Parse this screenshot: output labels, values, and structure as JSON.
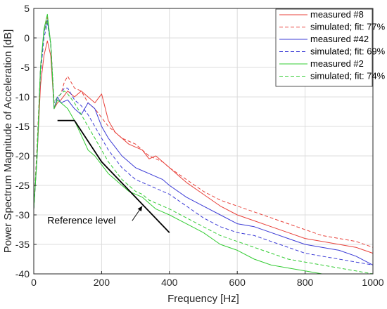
{
  "chart_data": {
    "type": "line",
    "title": "",
    "xlabel": "Frequency [Hz]",
    "ylabel": "Power Spectrum Magnitude of Acceleration [dB]",
    "xlim": [
      0,
      1000
    ],
    "ylim": [
      -40,
      5
    ],
    "xticks": [
      0,
      200,
      400,
      600,
      800,
      1000
    ],
    "yticks": [
      5,
      0,
      -5,
      -10,
      -15,
      -20,
      -25,
      -30,
      -35,
      -40
    ],
    "grid": true,
    "legend_position": "top-right",
    "series": [
      {
        "name": "measured #8",
        "color": "#e8413a",
        "dash": "solid",
        "x": [
          0,
          10,
          20,
          30,
          40,
          50,
          60,
          70,
          80,
          100,
          120,
          140,
          160,
          180,
          200,
          220,
          240,
          260,
          280,
          300,
          320,
          340,
          360,
          380,
          400,
          450,
          500,
          550,
          600,
          650,
          700,
          750,
          800,
          850,
          900,
          950,
          1000
        ],
        "y": [
          -29,
          -20,
          -8,
          -3,
          -0.5,
          -3,
          -12,
          -11,
          -10.5,
          -9,
          -10,
          -9,
          -10,
          -11,
          -9.5,
          -14,
          -16,
          -17,
          -18,
          -18.5,
          -19,
          -20.5,
          -20,
          -21,
          -22,
          -24.5,
          -26.5,
          -28.5,
          -30,
          -31,
          -32,
          -33,
          -34,
          -34.5,
          -35,
          -35.5,
          -36.5
        ]
      },
      {
        "name": "simulated; fit: 77%",
        "color": "#e8413a",
        "dash": "dashed",
        "x": [
          0,
          10,
          20,
          30,
          40,
          50,
          60,
          70,
          80,
          90,
          100,
          120,
          140,
          160,
          180,
          200,
          220,
          240,
          260,
          280,
          300,
          320,
          340,
          360,
          380,
          400,
          450,
          500,
          550,
          600,
          650,
          700,
          750,
          800,
          850,
          900,
          950,
          1000
        ],
        "y": [
          -29,
          -18,
          -5,
          1,
          3.5,
          -1,
          -11,
          -10,
          -9.5,
          -7.5,
          -6.5,
          -8.5,
          -9,
          -11,
          -12,
          -13.5,
          -15,
          -16,
          -17,
          -17.5,
          -18,
          -19,
          -20,
          -20.5,
          -21,
          -22,
          -24,
          -26,
          -27.5,
          -28.5,
          -29.5,
          -30.5,
          -31.5,
          -32.5,
          -33.5,
          -34,
          -34.5,
          -35.5
        ]
      },
      {
        "name": "measured #42",
        "color": "#3b3bd6",
        "dash": "solid",
        "x": [
          0,
          10,
          20,
          30,
          40,
          50,
          60,
          70,
          80,
          100,
          120,
          140,
          160,
          180,
          200,
          220,
          240,
          260,
          280,
          300,
          320,
          340,
          360,
          380,
          400,
          450,
          500,
          550,
          600,
          650,
          700,
          750,
          800,
          850,
          900,
          950,
          1000
        ],
        "y": [
          -29,
          -20,
          -5,
          1,
          3,
          -1,
          -12,
          -10,
          -11,
          -10.5,
          -12,
          -13,
          -11,
          -12,
          -15,
          -17,
          -18.5,
          -20,
          -21,
          -22,
          -22.5,
          -23,
          -23.5,
          -24,
          -25,
          -27,
          -28.5,
          -30,
          -31.5,
          -32,
          -33,
          -34,
          -35,
          -35.5,
          -36,
          -37,
          -38.5
        ]
      },
      {
        "name": "simulated; fit: 69%",
        "color": "#3b3bd6",
        "dash": "dashed",
        "x": [
          0,
          10,
          20,
          30,
          40,
          50,
          60,
          70,
          80,
          90,
          100,
          120,
          140,
          160,
          180,
          200,
          220,
          240,
          260,
          280,
          300,
          320,
          340,
          360,
          380,
          400,
          450,
          500,
          550,
          600,
          650,
          700,
          750,
          800,
          850,
          900,
          950,
          1000
        ],
        "y": [
          -29,
          -19,
          -6,
          0,
          2.5,
          -1,
          -11,
          -10,
          -9.5,
          -8.5,
          -8.5,
          -10.5,
          -11.5,
          -13,
          -15,
          -17,
          -19,
          -20.5,
          -22,
          -23,
          -24,
          -24.5,
          -25,
          -25.5,
          -26,
          -26.5,
          -28.5,
          -30.5,
          -32,
          -33,
          -33.5,
          -34.5,
          -35.5,
          -36.5,
          -37,
          -37.5,
          -38,
          -38.5
        ]
      },
      {
        "name": "measured #2",
        "color": "#33cc33",
        "dash": "solid",
        "x": [
          0,
          10,
          20,
          30,
          40,
          50,
          60,
          70,
          80,
          100,
          120,
          140,
          160,
          180,
          200,
          220,
          240,
          260,
          280,
          300,
          320,
          340,
          360,
          380,
          400,
          450,
          500,
          550,
          600,
          650,
          700,
          750,
          800,
          850,
          900,
          950,
          1000
        ],
        "y": [
          -29,
          -20,
          -5,
          1.5,
          4,
          -1,
          -12,
          -10.5,
          -11,
          -12,
          -14,
          -16.5,
          -19,
          -20,
          -21.5,
          -23,
          -24,
          -25,
          -26,
          -26.5,
          -27,
          -28,
          -29,
          -29.5,
          -30,
          -31.5,
          -33,
          -35,
          -36,
          -37.5,
          -38.5,
          -39,
          -39.5,
          -40,
          -40,
          -40,
          -40
        ]
      },
      {
        "name": "simulated; fit: 74%",
        "color": "#33cc33",
        "dash": "dashed",
        "x": [
          0,
          10,
          20,
          30,
          40,
          50,
          60,
          70,
          80,
          90,
          100,
          120,
          140,
          160,
          180,
          200,
          220,
          240,
          260,
          280,
          300,
          320,
          340,
          360,
          380,
          400,
          450,
          500,
          550,
          600,
          650,
          700,
          750,
          800,
          850,
          900,
          950,
          1000
        ],
        "y": [
          -29,
          -19,
          -5,
          1,
          3,
          -1,
          -11,
          -10,
          -9.5,
          -9,
          -9.5,
          -11,
          -13,
          -15,
          -17,
          -19,
          -21,
          -22.5,
          -24,
          -25,
          -26,
          -26.5,
          -27.5,
          -28,
          -28.5,
          -29,
          -30.5,
          -32,
          -33.5,
          -34.5,
          -35.5,
          -36.5,
          -37.5,
          -38,
          -38.5,
          -39,
          -39.5,
          -40
        ]
      }
    ],
    "reference_line": {
      "color": "#000000",
      "x": [
        70,
        120,
        200,
        400
      ],
      "y": [
        -14,
        -14,
        -21,
        -33
      ]
    },
    "annotation": {
      "text": "Reference level",
      "text_x": 40,
      "text_y": -31.5,
      "arrow_from": [
        290,
        -31
      ],
      "arrow_to": [
        320,
        -28.5
      ]
    }
  }
}
